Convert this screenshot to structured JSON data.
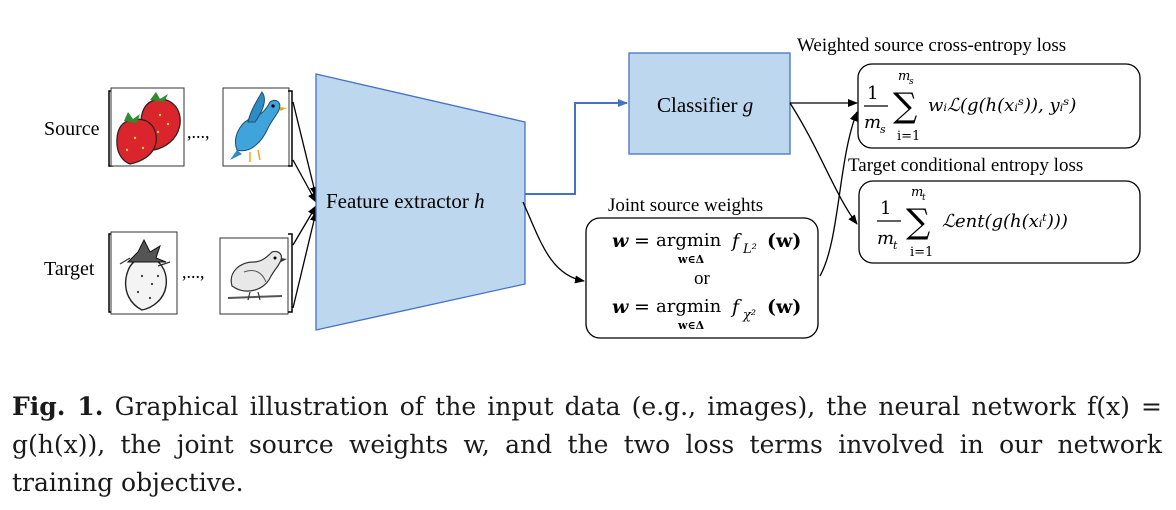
{
  "inputs": {
    "source_label": "Source",
    "target_label": "Target",
    "ellipsis": ",...,"
  },
  "feature_extractor": {
    "label": "Feature extractor",
    "symbol": "h"
  },
  "classifier": {
    "label": "Classifier",
    "symbol": "g"
  },
  "joint_weights": {
    "title": "Joint source weights",
    "eq1": {
      "lhs": "w",
      "op": "argmin",
      "sub": "w∈Δ",
      "fn": "f",
      "fn_sub": "L²",
      "arg": "(w)"
    },
    "or": "or",
    "eq2": {
      "lhs": "w",
      "op": "argmin",
      "sub": "w∈Δ",
      "fn": "f",
      "fn_sub": "χ²",
      "arg": "(w)"
    }
  },
  "loss_source": {
    "title": "Weighted source cross-entropy loss",
    "num": "1",
    "den": "m",
    "den_sub": "s",
    "upper": "m",
    "upper_sub": "s",
    "lower": "i=1",
    "body": "wᵢℒ(g(h(xᵢˢ)), yᵢˢ)"
  },
  "loss_target": {
    "title": "Target conditional entropy loss",
    "num": "1",
    "den": "m",
    "den_sub": "t",
    "upper": "m",
    "upper_sub": "t",
    "lower": "i=1",
    "body": "ℒent(g(h(xᵢᵗ)))"
  },
  "caption": {
    "label": "Fig. 1.",
    "text": "Graphical illustration of the input data (e.g., images), the neural network f(x) = g(h(x)), the joint source weights w, and the two loss terms involved in our network training objective."
  },
  "colors": {
    "box_fill": "#bdd7ee",
    "box_stroke": "#4472c4",
    "blue_arrow": "#4472c4",
    "strawberry": "#d9252b",
    "bird": "#3fa3dc"
  }
}
